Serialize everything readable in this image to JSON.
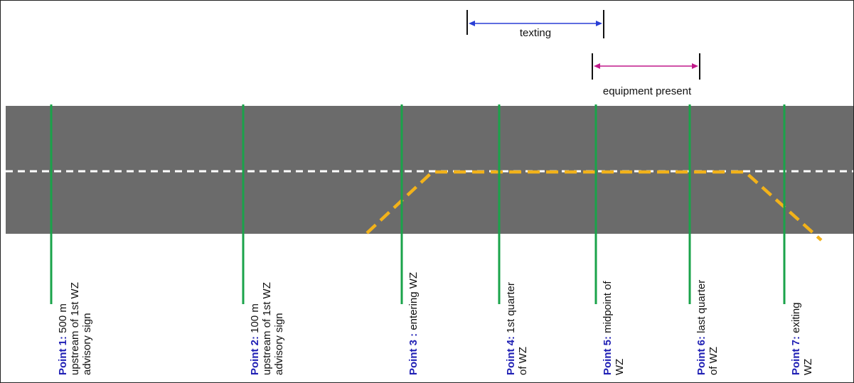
{
  "colors": {
    "road": "#6b6b6b",
    "center_dash": "#ffffff",
    "taper": "#f2b21a",
    "marker": "#1aa34a",
    "texting_arrow": "#2a3fd6",
    "equipment_arrow": "#c0198a",
    "point_label": "#1f1fb4"
  },
  "intervals": {
    "texting": "texting",
    "equipment": "equipment present"
  },
  "points": [
    {
      "prefix": "Point 1:",
      "lines": [
        "500 m",
        "upstream of  1st WZ",
        "advisory sign"
      ]
    },
    {
      "prefix": "Point 2:",
      "lines": [
        "100 m",
        "upstream of 1st WZ",
        "advisory sign"
      ]
    },
    {
      "prefix": "Point 3 :",
      "lines": [
        "entering WZ"
      ]
    },
    {
      "prefix": "Point 4:",
      "lines": [
        "1st quarter",
        "of WZ"
      ]
    },
    {
      "prefix": "Point 5:",
      "lines": [
        "midpoint of",
        "WZ"
      ]
    },
    {
      "prefix": "Point 6:",
      "lines": [
        "last quarter",
        "of WZ"
      ]
    },
    {
      "prefix": "Point 7:",
      "lines": [
        "exiting",
        "WZ"
      ]
    }
  ]
}
